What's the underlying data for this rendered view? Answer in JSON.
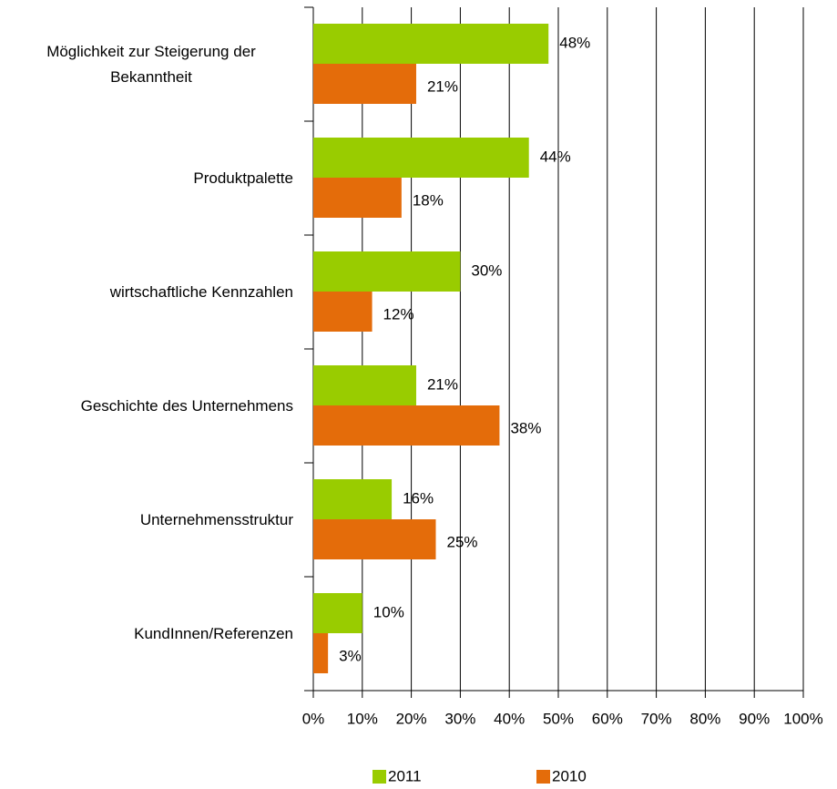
{
  "chart_data": {
    "type": "hbar",
    "categories": [
      "Möglichkeit zur Steigerung der Bekanntheit",
      "Produktpalette",
      "wirtschaftliche Kennzahlen",
      "Geschichte des Unternehmens",
      "Unternehmensstruktur",
      "KundInnen/Referenzen"
    ],
    "series": [
      {
        "name": "2011",
        "color": "#99cc00",
        "values": [
          48,
          44,
          30,
          21,
          16,
          10
        ],
        "value_labels": [
          "48%",
          "44%",
          "30%",
          "21%",
          "16%",
          "10%"
        ]
      },
      {
        "name": "2010",
        "color": "#e46c0a",
        "values": [
          21,
          18,
          12,
          38,
          25,
          3
        ],
        "value_labels": [
          "21%",
          "18%",
          "12%",
          "38%",
          "25%",
          "3%"
        ]
      }
    ],
    "xlim": [
      0,
      100
    ],
    "xticks": [
      {
        "value": 0,
        "label": "0%"
      },
      {
        "value": 10,
        "label": "10%"
      },
      {
        "value": 20,
        "label": "20%"
      },
      {
        "value": 30,
        "label": "30%"
      },
      {
        "value": 40,
        "label": "40%"
      },
      {
        "value": 50,
        "label": "50%"
      },
      {
        "value": 60,
        "label": "60%"
      },
      {
        "value": 70,
        "label": "70%"
      },
      {
        "value": 80,
        "label": "80%"
      },
      {
        "value": 90,
        "label": "90%"
      },
      {
        "value": 100,
        "label": "100%"
      }
    ],
    "grid": true,
    "legend": "bottom"
  }
}
